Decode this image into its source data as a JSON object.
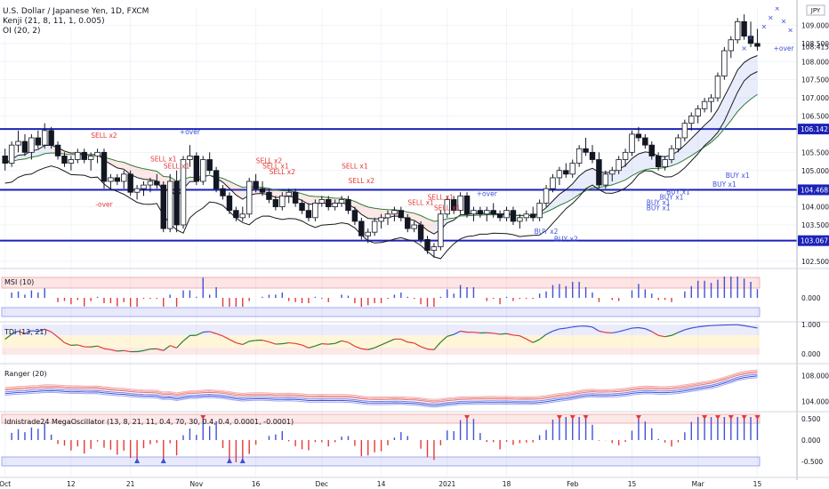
{
  "header": {
    "title": "U.S. Dollar / Japanese Yen, 1D, FXCM",
    "indicator_1": "Kenji (21, 8, 11, 1, 0.005)",
    "indicator_2": "OI (20, 2)",
    "currency_badge": "JPY"
  },
  "chart_data": {
    "type": "candlestick",
    "symbol": "USDJPY",
    "x_ticks": [
      "Oct",
      "12",
      "21",
      "Nov",
      "16",
      "Dec",
      "14",
      "2021",
      "18",
      "Feb",
      "15",
      "Mar",
      "15"
    ],
    "main_panel": {
      "y_ticks": [
        "109.000",
        "108.500",
        "108.000",
        "107.500",
        "107.000",
        "106.500",
        "105.500",
        "105.000",
        "104.500",
        "104.000",
        "103.500",
        "102.500"
      ],
      "ylim": [
        102.3,
        109.5
      ],
      "last_price": "108.415",
      "levels": [
        {
          "value": 106.142,
          "label": "106.142"
        },
        {
          "value": 104.468,
          "label": "104.468"
        },
        {
          "value": 103.067,
          "label": "103.067"
        }
      ],
      "candles_ohlc": [
        [
          105.4,
          105.6,
          105.0,
          105.2
        ],
        [
          105.2,
          105.8,
          105.1,
          105.7
        ],
        [
          105.7,
          106.1,
          105.5,
          105.8
        ],
        [
          105.8,
          106.0,
          105.4,
          105.5
        ],
        [
          105.5,
          106.0,
          105.3,
          105.9
        ],
        [
          105.9,
          106.1,
          105.6,
          105.7
        ],
        [
          105.7,
          106.3,
          105.6,
          106.1
        ],
        [
          106.1,
          106.2,
          105.6,
          105.7
        ],
        [
          105.7,
          105.8,
          105.3,
          105.4
        ],
        [
          105.4,
          105.5,
          105.1,
          105.2
        ],
        [
          105.2,
          105.4,
          105.0,
          105.3
        ],
        [
          105.3,
          105.6,
          105.2,
          105.5
        ],
        [
          105.5,
          105.6,
          105.2,
          105.3
        ],
        [
          105.3,
          105.5,
          105.0,
          105.4
        ],
        [
          105.4,
          105.6,
          105.2,
          105.5
        ],
        [
          105.5,
          105.6,
          104.5,
          104.7
        ],
        [
          104.7,
          104.9,
          104.5,
          104.8
        ],
        [
          104.8,
          104.9,
          104.6,
          104.7
        ],
        [
          104.7,
          105.0,
          104.5,
          104.9
        ],
        [
          104.9,
          105.0,
          104.3,
          104.4
        ],
        [
          104.4,
          104.6,
          104.2,
          104.5
        ],
        [
          104.5,
          104.7,
          104.3,
          104.6
        ],
        [
          104.6,
          104.8,
          104.4,
          104.7
        ],
        [
          104.7,
          104.9,
          104.5,
          104.6
        ],
        [
          104.6,
          104.7,
          103.3,
          103.4
        ],
        [
          103.4,
          104.9,
          103.3,
          104.7
        ],
        [
          104.7,
          105.0,
          103.3,
          103.5
        ],
        [
          103.5,
          105.4,
          103.4,
          105.3
        ],
        [
          105.3,
          105.7,
          105.1,
          105.4
        ],
        [
          105.4,
          105.5,
          104.6,
          104.7
        ],
        [
          104.7,
          105.4,
          104.6,
          105.3
        ],
        [
          105.3,
          105.5,
          104.9,
          105.0
        ],
        [
          105.0,
          105.1,
          104.4,
          104.5
        ],
        [
          104.5,
          104.6,
          104.2,
          104.3
        ],
        [
          104.3,
          104.4,
          103.8,
          103.9
        ],
        [
          103.9,
          104.0,
          103.6,
          103.7
        ],
        [
          103.7,
          104.0,
          103.6,
          103.8
        ],
        [
          103.8,
          104.8,
          103.7,
          104.7
        ],
        [
          104.7,
          104.9,
          104.4,
          104.5
        ],
        [
          104.5,
          104.7,
          104.3,
          104.4
        ],
        [
          104.4,
          104.5,
          104.1,
          104.2
        ],
        [
          104.2,
          104.3,
          103.9,
          104.0
        ],
        [
          104.0,
          104.4,
          103.9,
          104.3
        ],
        [
          104.3,
          104.5,
          104.1,
          104.4
        ],
        [
          104.4,
          104.5,
          104.0,
          104.1
        ],
        [
          104.1,
          104.2,
          103.8,
          103.9
        ],
        [
          103.9,
          104.1,
          103.6,
          103.7
        ],
        [
          103.7,
          104.2,
          103.6,
          104.1
        ],
        [
          104.1,
          104.3,
          104.0,
          104.2
        ],
        [
          104.2,
          104.3,
          103.9,
          104.0
        ],
        [
          104.0,
          104.2,
          103.9,
          104.1
        ],
        [
          104.1,
          104.3,
          104.0,
          104.2
        ],
        [
          104.2,
          104.3,
          103.8,
          103.9
        ],
        [
          103.9,
          104.0,
          103.5,
          103.6
        ],
        [
          103.6,
          103.7,
          103.1,
          103.2
        ],
        [
          103.2,
          103.4,
          103.0,
          103.3
        ],
        [
          103.3,
          103.7,
          103.2,
          103.6
        ],
        [
          103.6,
          103.8,
          103.4,
          103.7
        ],
        [
          103.7,
          103.9,
          103.5,
          103.8
        ],
        [
          103.8,
          104.0,
          103.6,
          103.9
        ],
        [
          103.9,
          104.0,
          103.6,
          103.7
        ],
        [
          103.7,
          103.8,
          103.3,
          103.4
        ],
        [
          103.4,
          103.6,
          103.3,
          103.5
        ],
        [
          103.5,
          103.6,
          103.0,
          103.1
        ],
        [
          103.1,
          103.2,
          102.7,
          102.8
        ],
        [
          102.8,
          103.0,
          102.6,
          102.9
        ],
        [
          102.9,
          103.9,
          102.8,
          103.8
        ],
        [
          103.8,
          104.3,
          103.7,
          104.2
        ],
        [
          104.2,
          104.3,
          103.8,
          103.9
        ],
        [
          103.9,
          104.4,
          103.8,
          104.3
        ],
        [
          104.3,
          104.4,
          103.7,
          103.8
        ],
        [
          103.8,
          104.0,
          103.6,
          103.9
        ],
        [
          103.9,
          104.0,
          103.7,
          103.8
        ],
        [
          103.8,
          104.0,
          103.6,
          103.9
        ],
        [
          103.9,
          104.1,
          103.7,
          103.8
        ],
        [
          103.8,
          103.9,
          103.6,
          103.7
        ],
        [
          103.7,
          104.0,
          103.6,
          103.9
        ],
        [
          103.9,
          104.0,
          103.5,
          103.6
        ],
        [
          103.6,
          103.8,
          103.4,
          103.7
        ],
        [
          103.7,
          103.9,
          103.6,
          103.8
        ],
        [
          103.8,
          104.0,
          103.6,
          103.7
        ],
        [
          103.7,
          104.2,
          103.6,
          104.1
        ],
        [
          104.1,
          104.6,
          104.0,
          104.5
        ],
        [
          104.5,
          104.9,
          104.4,
          104.8
        ],
        [
          104.8,
          105.1,
          104.6,
          105.0
        ],
        [
          105.0,
          105.2,
          104.8,
          104.9
        ],
        [
          104.9,
          105.3,
          104.8,
          105.2
        ],
        [
          105.2,
          105.7,
          105.1,
          105.6
        ],
        [
          105.6,
          105.9,
          105.4,
          105.5
        ],
        [
          105.5,
          105.7,
          105.2,
          105.3
        ],
        [
          105.3,
          105.5,
          104.5,
          104.6
        ],
        [
          104.6,
          105.0,
          104.5,
          104.9
        ],
        [
          104.9,
          105.1,
          104.7,
          105.0
        ],
        [
          105.0,
          105.4,
          104.9,
          105.3
        ],
        [
          105.3,
          105.6,
          105.1,
          105.5
        ],
        [
          105.5,
          106.1,
          105.4,
          106.0
        ],
        [
          106.0,
          106.2,
          105.8,
          105.9
        ],
        [
          105.9,
          106.0,
          105.6,
          105.7
        ],
        [
          105.7,
          105.8,
          105.3,
          105.4
        ],
        [
          105.4,
          105.5,
          105.0,
          105.1
        ],
        [
          105.1,
          105.4,
          105.0,
          105.3
        ],
        [
          105.3,
          105.7,
          105.2,
          105.6
        ],
        [
          105.6,
          106.0,
          105.5,
          105.9
        ],
        [
          105.9,
          106.4,
          105.8,
          106.3
        ],
        [
          106.3,
          106.6,
          106.1,
          106.5
        ],
        [
          106.5,
          106.8,
          106.3,
          106.7
        ],
        [
          106.7,
          107.0,
          106.6,
          106.9
        ],
        [
          106.9,
          107.1,
          106.6,
          107.0
        ],
        [
          107.0,
          107.7,
          106.9,
          107.6
        ],
        [
          107.6,
          108.4,
          107.5,
          108.3
        ],
        [
          108.3,
          108.7,
          108.1,
          108.6
        ],
        [
          108.6,
          109.2,
          108.5,
          109.1
        ],
        [
          109.1,
          109.3,
          108.6,
          108.7
        ],
        [
          108.7,
          109.1,
          108.4,
          108.5
        ],
        [
          108.5,
          108.9,
          108.3,
          108.42
        ]
      ],
      "signals": [
        {
          "text": "SELL x2",
          "type": "sell",
          "bar": 15,
          "price": 105.9
        },
        {
          "text": "-over",
          "type": "sell",
          "bar": 15,
          "price": 104.0
        },
        {
          "text": "SELL x1",
          "type": "sell",
          "bar": 24,
          "price": 105.25
        },
        {
          "text": "SELL x1",
          "type": "sell",
          "bar": 26,
          "price": 105.05
        },
        {
          "text": "+over",
          "type": "buy",
          "bar": 28,
          "price": 106.0
        },
        {
          "text": "SELL x2",
          "type": "sell",
          "bar": 40,
          "price": 105.2
        },
        {
          "text": "SELL x1",
          "type": "sell",
          "bar": 41,
          "price": 105.05
        },
        {
          "text": "SELL x2",
          "type": "sell",
          "bar": 42,
          "price": 104.9
        },
        {
          "text": "SELL x1",
          "type": "sell",
          "bar": 53,
          "price": 105.05
        },
        {
          "text": "SELL x2",
          "type": "sell",
          "bar": 54,
          "price": 104.65
        },
        {
          "text": "SELL x1",
          "type": "sell",
          "bar": 66,
          "price": 104.2
        },
        {
          "text": "SELL x1",
          "type": "sell",
          "bar": 63,
          "price": 104.05
        },
        {
          "text": "SELL x1",
          "type": "sell",
          "bar": 67,
          "price": 103.9
        },
        {
          "text": "+over",
          "type": "buy",
          "bar": 73,
          "price": 104.3
        },
        {
          "text": "BUY x2",
          "type": "buy",
          "bar": 82,
          "price": 103.25
        },
        {
          "text": "BUY x2",
          "type": "buy",
          "bar": 85,
          "price": 103.05
        },
        {
          "text": "BUY x1",
          "type": "buy",
          "bar": 102,
          "price": 104.35
        },
        {
          "text": "BUY x1",
          "type": "buy",
          "bar": 101,
          "price": 104.2
        },
        {
          "text": "BUY x1",
          "type": "buy",
          "bar": 99,
          "price": 104.05
        },
        {
          "text": "BUY x1",
          "type": "buy",
          "bar": 99,
          "price": 103.9
        },
        {
          "text": "BUY x1",
          "type": "buy",
          "bar": 111,
          "price": 104.8
        },
        {
          "text": "BUY x1",
          "type": "buy",
          "bar": 109,
          "price": 104.55
        },
        {
          "text": "+over",
          "type": "buy",
          "bar": 118,
          "price": 108.3
        }
      ]
    },
    "panels": [
      {
        "name": "MSI (10)",
        "y_ticks": [
          "0.000"
        ]
      },
      {
        "name": "TDI (13, 21)",
        "y_ticks": [
          "1.000",
          "0.000"
        ]
      },
      {
        "name": "Ranger (20)",
        "y_ticks": [
          "108.000",
          "104.000"
        ]
      },
      {
        "name": "Idnistrade24 MegaOscillator (13, 8, 21, 11, 0.4, 70, 30, 0.4, 0.4, 0.0001, -0.0001)",
        "y_ticks": [
          "0.500",
          "0.000",
          "-0.500"
        ]
      }
    ]
  }
}
